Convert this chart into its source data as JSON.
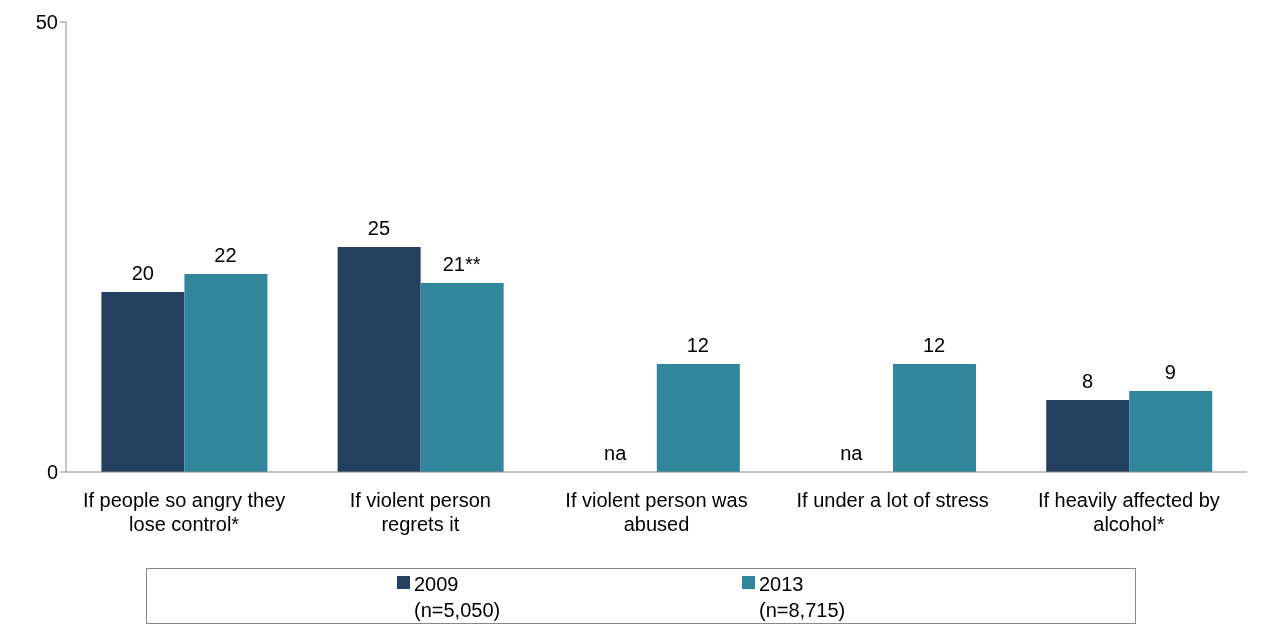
{
  "chart_data": {
    "type": "bar",
    "categories": [
      "If people so angry they lose control*",
      "If violent person regrets it",
      "If violent person was abused",
      "If under a lot of stress",
      "If heavily affected by alcohol*"
    ],
    "series": [
      {
        "name": "2009\n(n=5,050)",
        "color": "#253f5f",
        "values": [
          20,
          25,
          null,
          null,
          8
        ],
        "value_labels": [
          "20",
          "25",
          "na",
          "na",
          "8"
        ]
      },
      {
        "name": "2013\n(n=8,715)",
        "color": "#31869b",
        "values": [
          22,
          21,
          12,
          12,
          9
        ],
        "value_labels": [
          "22",
          "21**",
          "12",
          "12",
          "9"
        ]
      }
    ],
    "ylim": [
      0,
      50
    ],
    "yticks": [
      0,
      50
    ],
    "grid": false,
    "legend": "bottom"
  }
}
